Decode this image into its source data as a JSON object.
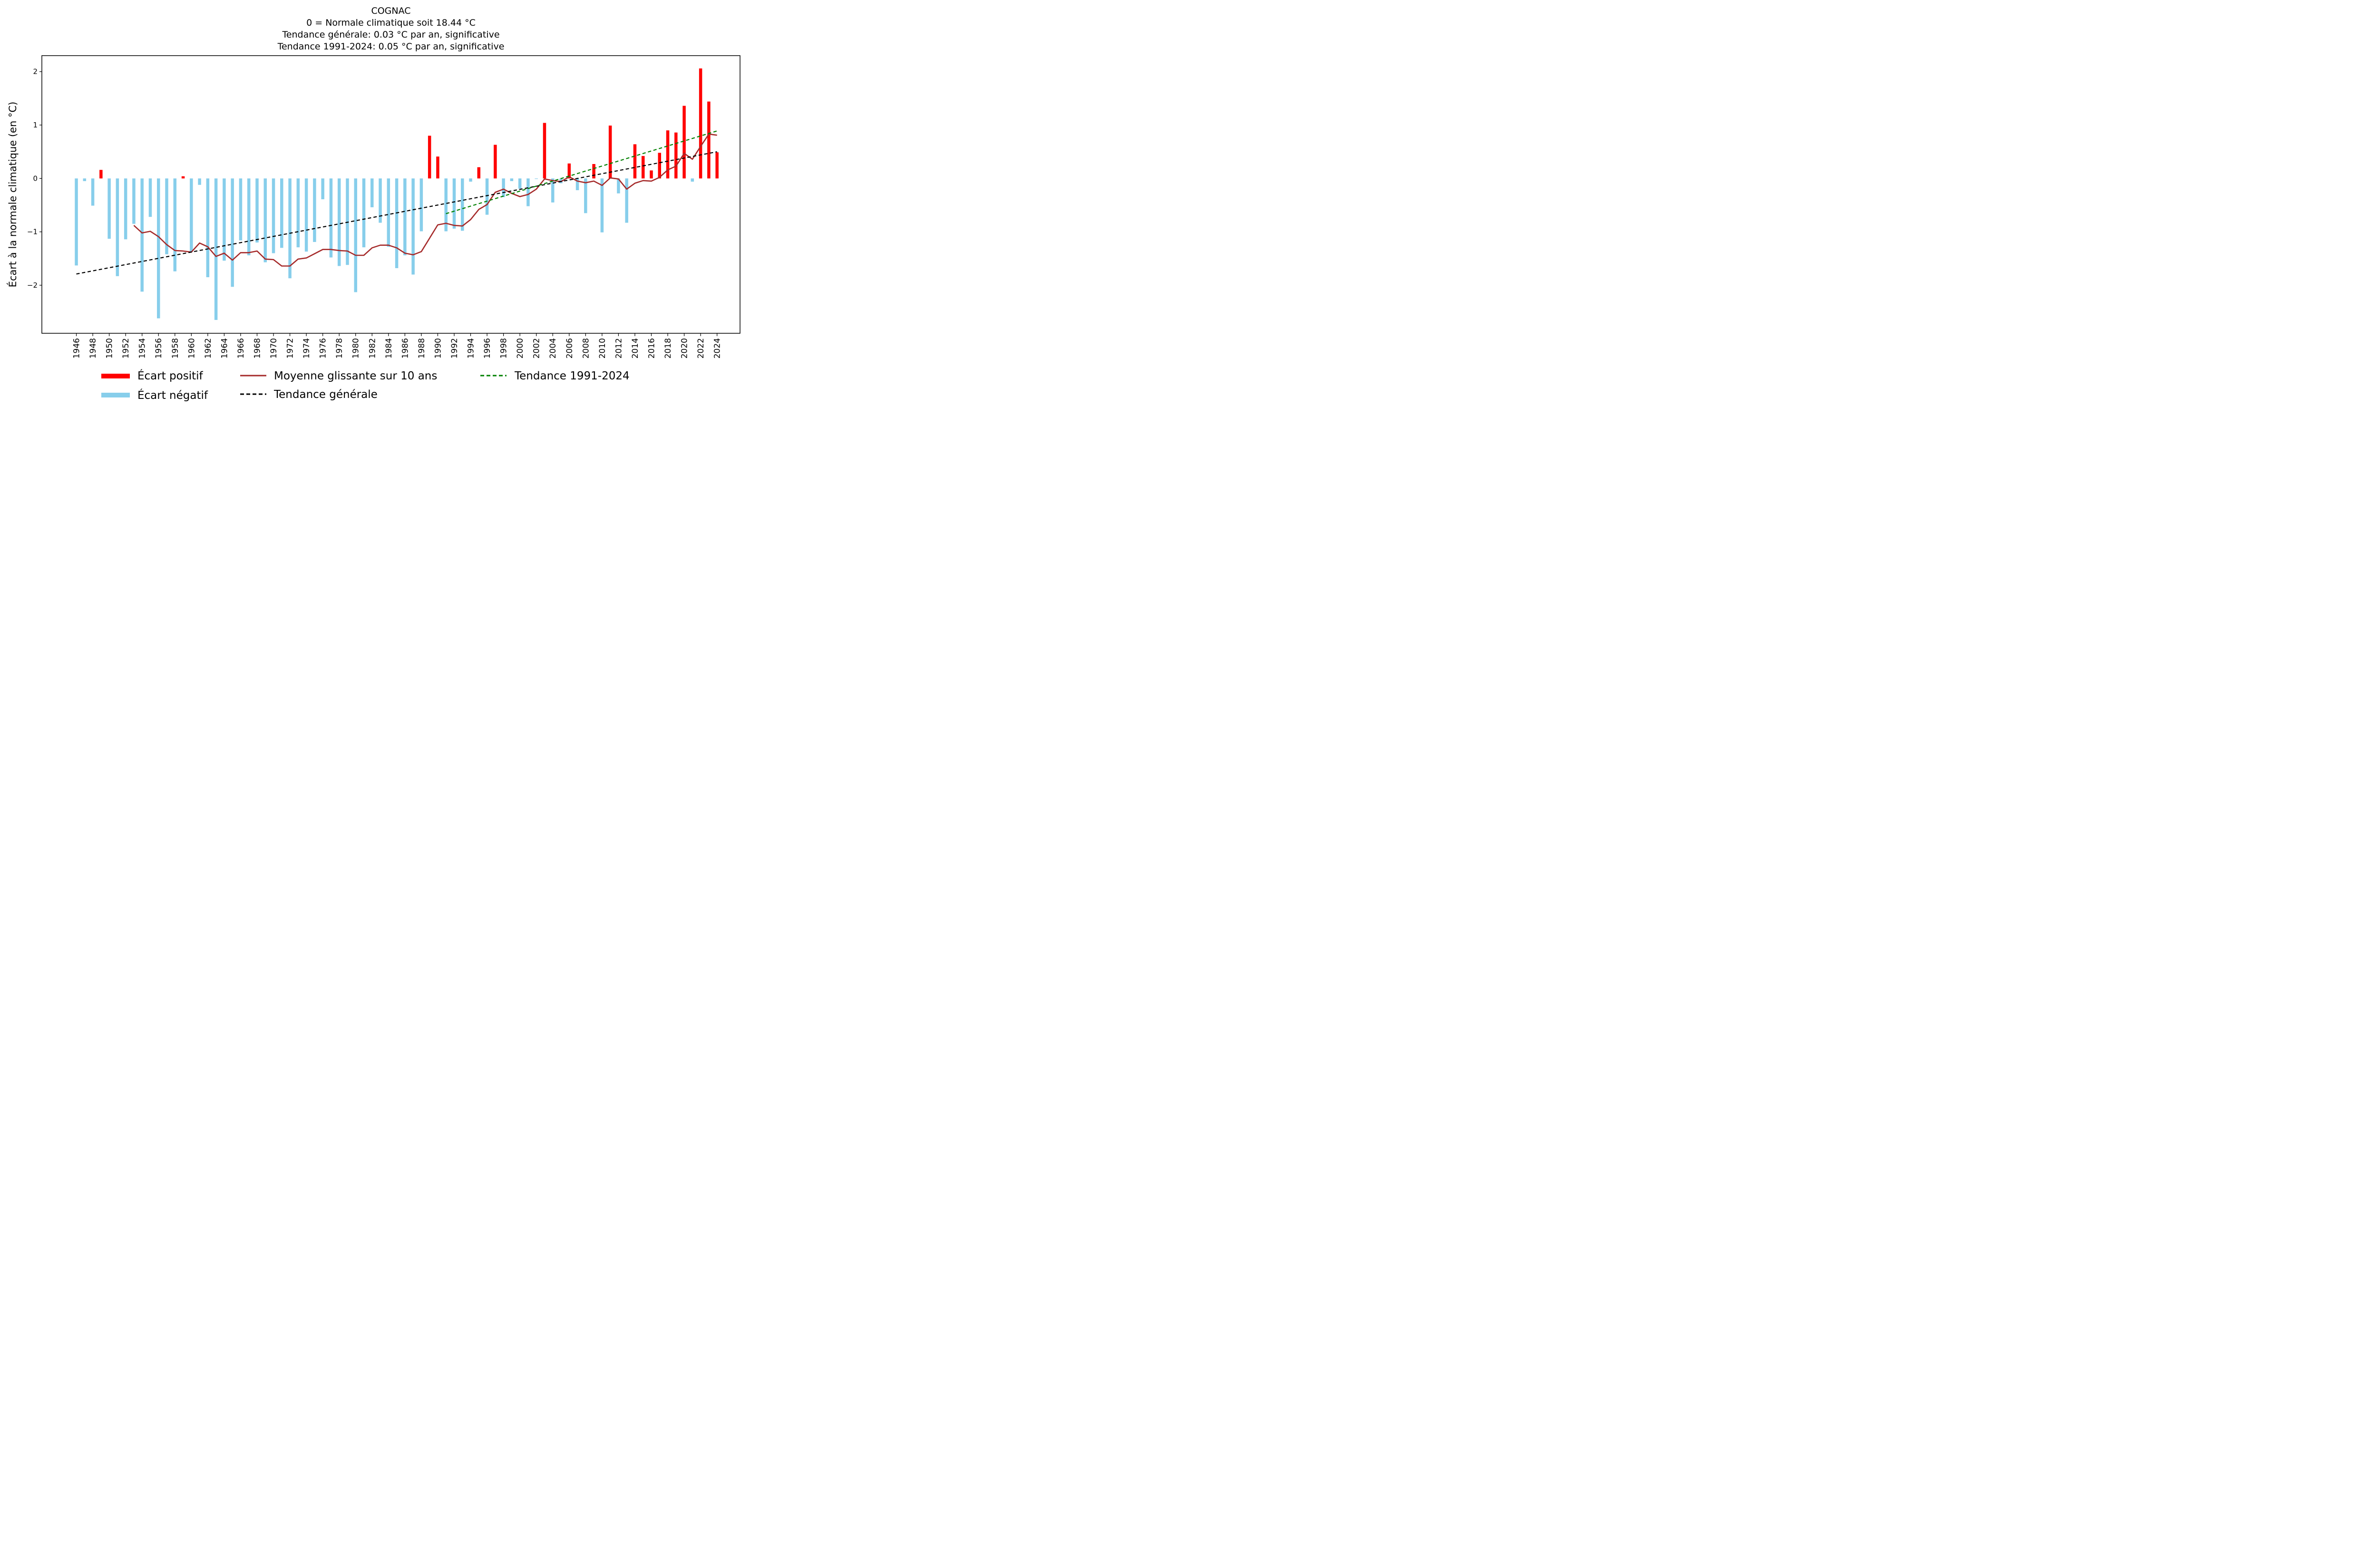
{
  "chart_data": {
    "type": "bar",
    "title": [
      "COGNAC",
      "0 = Normale climatique soit 18.44 °C",
      "Tendance générale: 0.03 °C par an, significative",
      "Tendance 1991-2024: 0.05 °C par an, significative"
    ],
    "xlabel": "",
    "ylabel": "Écart à la normale climatique (en °C)",
    "ylim": [
      -2.9,
      2.3
    ],
    "yticks": [
      2,
      1,
      0,
      -1,
      -2
    ],
    "ytick_labels": [
      "2",
      "1",
      "0",
      "−1",
      "−2"
    ],
    "xlim": [
      1941.8,
      2026.8
    ],
    "xticks": [
      1946,
      1948,
      1950,
      1952,
      1954,
      1956,
      1958,
      1960,
      1962,
      1964,
      1966,
      1968,
      1970,
      1972,
      1974,
      1976,
      1978,
      1980,
      1982,
      1984,
      1986,
      1988,
      1990,
      1992,
      1994,
      1996,
      1998,
      2000,
      2002,
      2004,
      2006,
      2008,
      2010,
      2012,
      2014,
      2016,
      2018,
      2020,
      2022,
      2024
    ],
    "grid": false,
    "legend_position": "bottom",
    "colors": {
      "positive": "#ff0000",
      "negative": "#87ceeb",
      "moving_average": "#a52a2a",
      "trend_general": "#000000",
      "trend_recent": "#008000"
    },
    "x": [
      1946,
      1947,
      1948,
      1949,
      1950,
      1951,
      1952,
      1953,
      1954,
      1955,
      1956,
      1957,
      1958,
      1959,
      1960,
      1961,
      1962,
      1963,
      1964,
      1965,
      1966,
      1967,
      1968,
      1969,
      1970,
      1971,
      1972,
      1973,
      1974,
      1975,
      1976,
      1977,
      1978,
      1979,
      1980,
      1981,
      1982,
      1983,
      1984,
      1985,
      1986,
      1987,
      1988,
      1989,
      1990,
      1991,
      1992,
      1993,
      1994,
      1995,
      1996,
      1997,
      1998,
      1999,
      2000,
      2001,
      2002,
      2003,
      2004,
      2005,
      2006,
      2007,
      2008,
      2009,
      2010,
      2011,
      2012,
      2013,
      2014,
      2015,
      2016,
      2017,
      2018,
      2019,
      2020,
      2021,
      2022,
      2023,
      2024
    ],
    "values": [
      -1.63,
      -0.05,
      -0.51,
      0.16,
      -1.13,
      -1.83,
      -1.14,
      -0.85,
      -2.12,
      -0.72,
      -2.62,
      -1.42,
      -1.74,
      0.04,
      -1.38,
      -0.12,
      -1.85,
      -2.65,
      -1.54,
      -2.03,
      -1.16,
      -1.44,
      -1.2,
      -1.57,
      -1.4,
      -1.3,
      -1.87,
      -1.29,
      -1.37,
      -1.19,
      -0.39,
      -1.48,
      -1.64,
      -1.62,
      -2.13,
      -1.29,
      -0.54,
      -0.83,
      -1.28,
      -1.68,
      -1.44,
      -1.8,
      -0.99,
      0.8,
      0.41,
      -0.99,
      -0.94,
      -0.98,
      -0.06,
      0.21,
      -0.68,
      0.63,
      -0.35,
      -0.05,
      -0.19,
      -0.52,
      -0.01,
      1.04,
      -0.45,
      -0.09,
      0.28,
      -0.22,
      -0.65,
      0.27,
      -1.01,
      0.99,
      -0.28,
      -0.83,
      0.64,
      0.42,
      0.15,
      0.48,
      0.9,
      0.86,
      1.36,
      -0.06,
      2.06,
      1.44,
      0.49
    ],
    "series": [
      {
        "name": "Moyenne glissante sur 10 ans",
        "type": "line",
        "x": [
          1953,
          1954,
          1955,
          1956,
          1957,
          1958,
          1959,
          1960,
          1961,
          1962,
          1963,
          1964,
          1965,
          1966,
          1967,
          1968,
          1969,
          1970,
          1971,
          1972,
          1973,
          1974,
          1975,
          1976,
          1977,
          1978,
          1979,
          1980,
          1981,
          1982,
          1983,
          1984,
          1985,
          1986,
          1987,
          1988,
          1989,
          1990,
          1991,
          1992,
          1993,
          1994,
          1995,
          1996,
          1997,
          1998,
          1999,
          2000,
          2001,
          2002,
          2003,
          2004,
          2005,
          2006,
          2007,
          2008,
          2009,
          2010,
          2011,
          2012,
          2013,
          2014,
          2015,
          2016,
          2017,
          2018,
          2019,
          2020,
          2021,
          2022,
          2023,
          2024
        ],
        "values": [
          -0.88,
          -1.02,
          -0.99,
          -1.09,
          -1.24,
          -1.35,
          -1.36,
          -1.38,
          -1.21,
          -1.28,
          -1.46,
          -1.4,
          -1.53,
          -1.39,
          -1.39,
          -1.36,
          -1.51,
          -1.52,
          -1.64,
          -1.64,
          -1.51,
          -1.49,
          -1.41,
          -1.33,
          -1.33,
          -1.35,
          -1.36,
          -1.44,
          -1.44,
          -1.3,
          -1.25,
          -1.25,
          -1.3,
          -1.4,
          -1.43,
          -1.37,
          -1.12,
          -0.87,
          -0.84,
          -0.88,
          -0.89,
          -0.77,
          -0.58,
          -0.49,
          -0.26,
          -0.2,
          -0.28,
          -0.34,
          -0.3,
          -0.2,
          -0.01,
          -0.04,
          -0.06,
          0.03,
          -0.05,
          -0.08,
          -0.05,
          -0.13,
          0.01,
          -0.01,
          -0.2,
          -0.09,
          -0.04,
          -0.05,
          0.02,
          0.16,
          0.23,
          0.47,
          0.36,
          0.6,
          0.83,
          0.81
        ]
      },
      {
        "name": "Tendance générale",
        "type": "line",
        "style": "dashed",
        "x": [
          1946,
          2024
        ],
        "values": [
          -1.79,
          0.5
        ]
      },
      {
        "name": "Tendance 1991-2024",
        "type": "line",
        "style": "dashed",
        "x": [
          1991,
          2024
        ],
        "values": [
          -0.66,
          0.89
        ]
      }
    ],
    "legend": [
      "Écart positif",
      "Écart négatif",
      "Moyenne glissante sur 10 ans",
      "Tendance générale",
      "Tendance 1991-2024"
    ]
  }
}
